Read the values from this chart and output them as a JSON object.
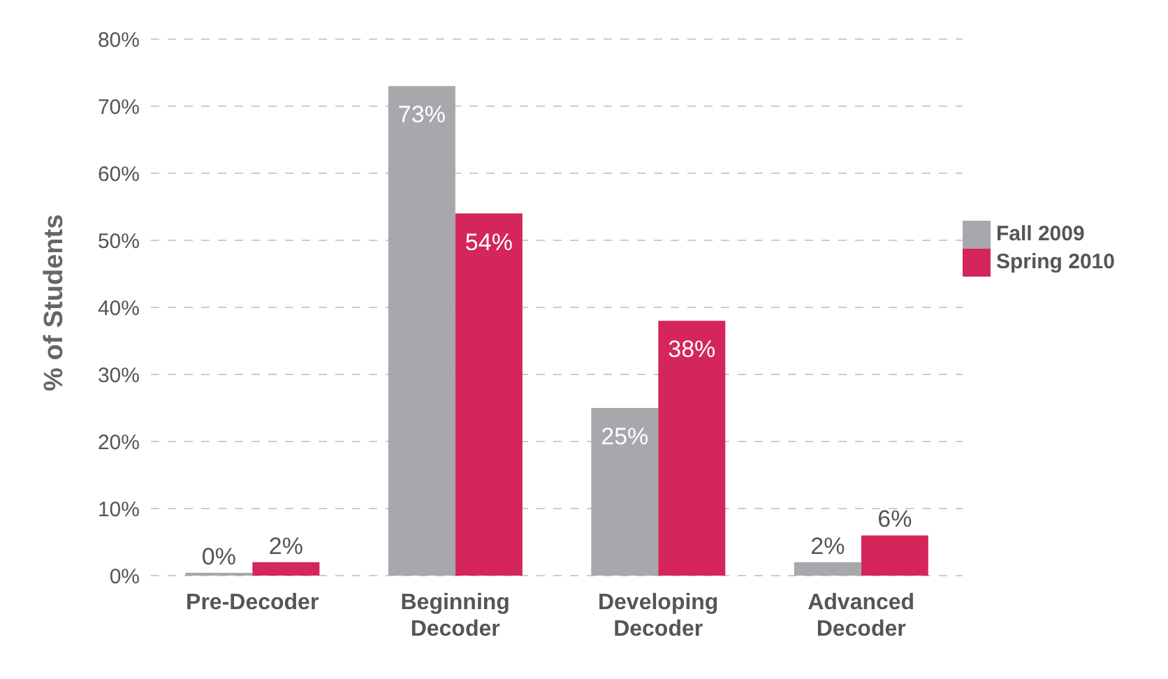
{
  "chart_data": {
    "type": "bar",
    "ylabel": "% of Students",
    "categories": [
      "Pre-Decoder",
      "Beginning Decoder",
      "Developing Decoder",
      "Advanced Decoder"
    ],
    "series": [
      {
        "name": "Fall 2009",
        "color": "#a7a8ab",
        "values": [
          0,
          73,
          25,
          2
        ],
        "value_labels": [
          "0%",
          "73%",
          "25%",
          "2%"
        ]
      },
      {
        "name": "Spring 2010",
        "color": "#d4265b",
        "values": [
          2,
          54,
          38,
          6
        ],
        "value_labels": [
          "2%",
          "54%",
          "38%",
          "6%"
        ]
      }
    ],
    "ylim": [
      0,
      80
    ],
    "yticks": [
      {
        "value": 0,
        "label": "0%"
      },
      {
        "value": 10,
        "label": "10%"
      },
      {
        "value": 20,
        "label": "20%"
      },
      {
        "value": 30,
        "label": "30%"
      },
      {
        "value": 40,
        "label": "40%"
      },
      {
        "value": 50,
        "label": "50%"
      },
      {
        "value": 60,
        "label": "60%"
      },
      {
        "value": 70,
        "label": "70%"
      },
      {
        "value": 80,
        "label": "80%"
      }
    ],
    "grid": "y",
    "legend": "right"
  }
}
